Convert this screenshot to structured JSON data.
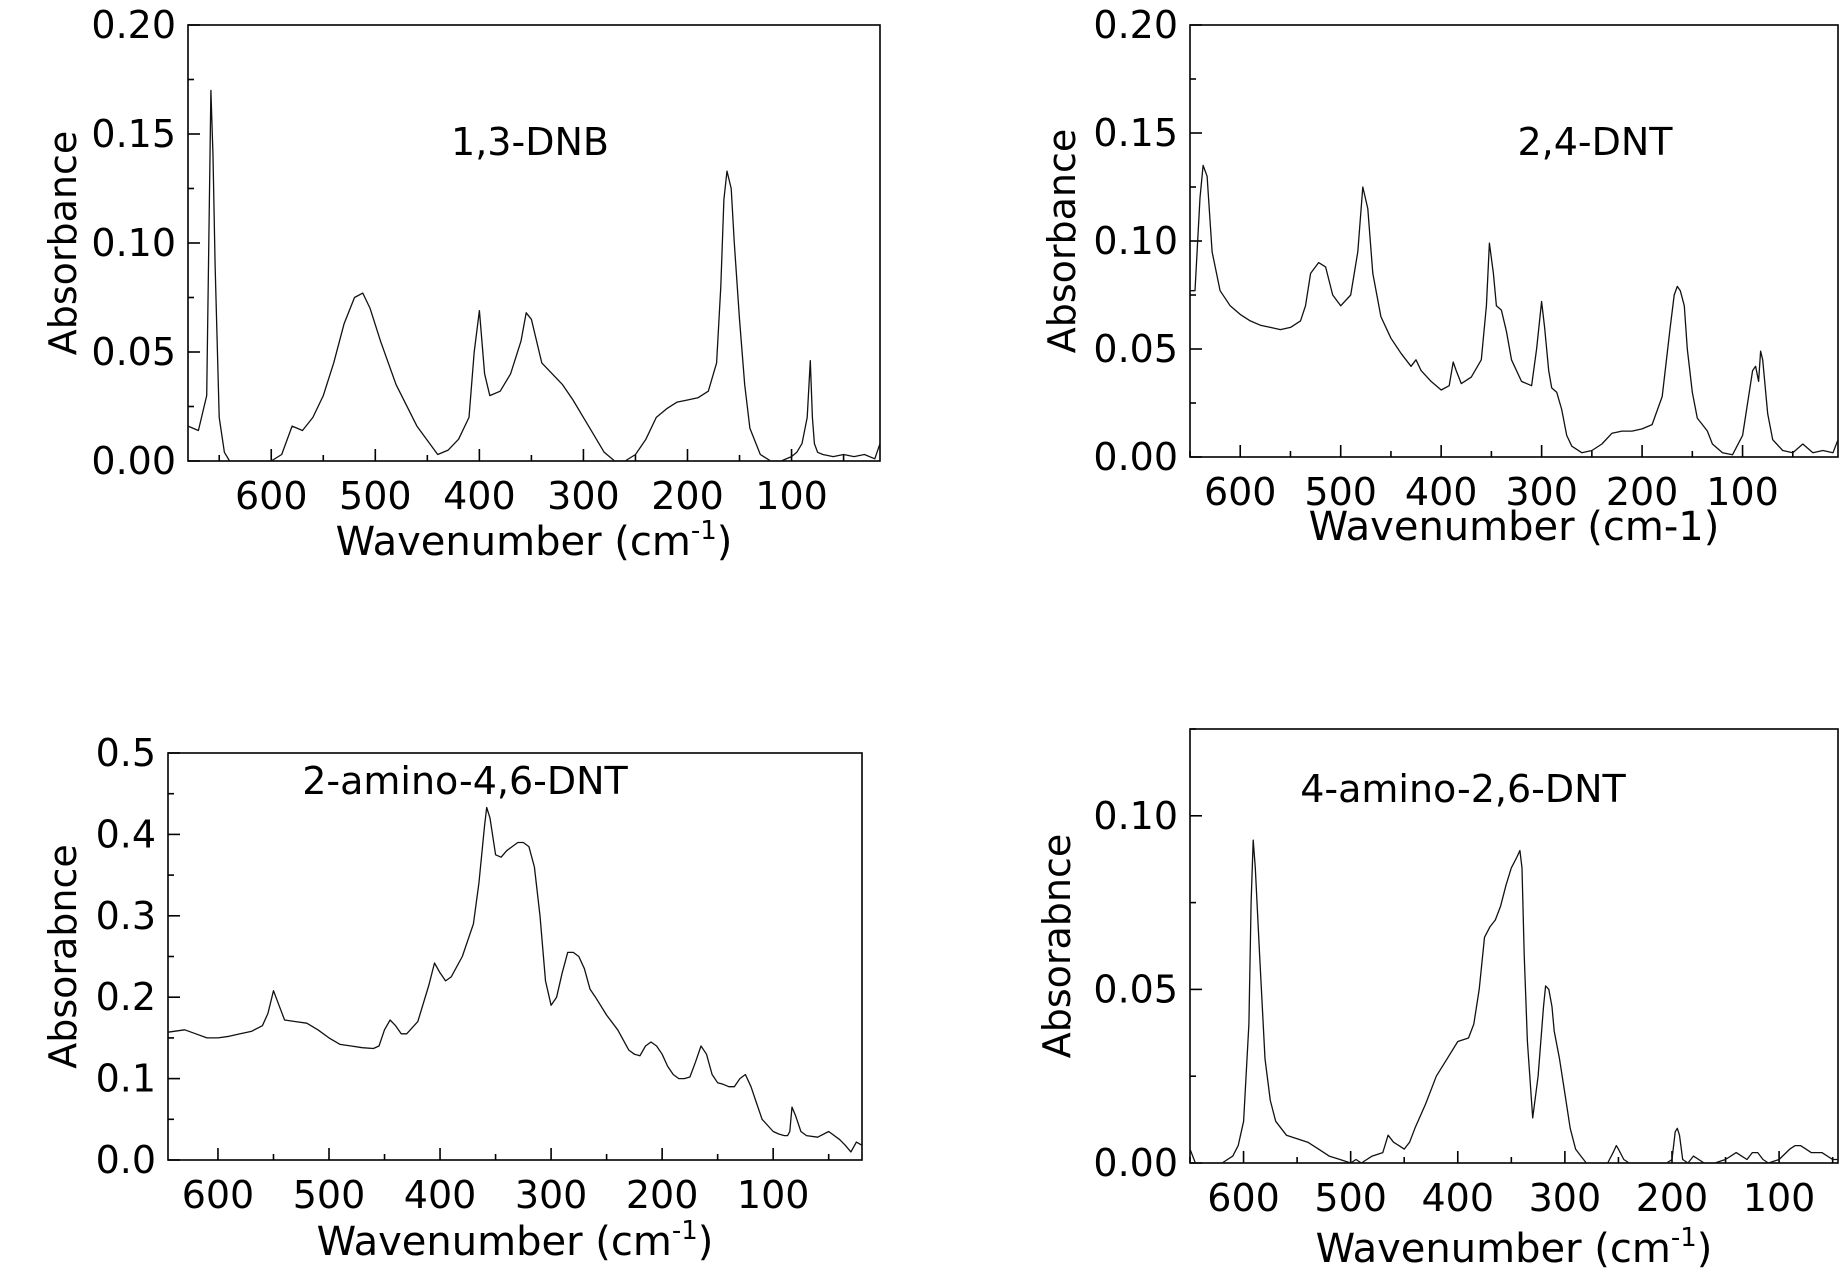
{
  "chart_data": [
    {
      "type": "line",
      "title": "1,3-DNB",
      "xlabel": "Wavenumber (cm",
      "xlabel_sup": "-1",
      "xlabel_end": ")",
      "ylabel": "Absorbance",
      "xlim": [
        680,
        15
      ],
      "ylim": [
        0,
        0.2
      ],
      "x_ticks": [
        600,
        500,
        400,
        300,
        200,
        100
      ],
      "x_tick_labels": [
        "600",
        "500",
        "400",
        "300",
        "200",
        "100"
      ],
      "y_ticks": [
        0,
        0.05,
        0.1,
        0.15,
        0.2
      ],
      "y_tick_labels": [
        "0.00",
        "0.05",
        "0.10",
        "0.15",
        "0.20"
      ],
      "grid": false,
      "series": [
        {
          "x": [
            680,
            670,
            662,
            658,
            656,
            654,
            650,
            645,
            640,
            620,
            600,
            590,
            580,
            570,
            560,
            550,
            540,
            530,
            520,
            512,
            505,
            495,
            480,
            460,
            440,
            430,
            420,
            410,
            405,
            400,
            395,
            390,
            380,
            370,
            360,
            355,
            350,
            345,
            340,
            330,
            320,
            310,
            300,
            290,
            280,
            270,
            260,
            250,
            240,
            230,
            220,
            210,
            200,
            190,
            180,
            172,
            168,
            165,
            162,
            158,
            155,
            150,
            145,
            140,
            130,
            120,
            110,
            100,
            95,
            90,
            85,
            82,
            80,
            78,
            75,
            70,
            60,
            50,
            40,
            30,
            20,
            15
          ],
          "y": [
            0.016,
            0.014,
            0.03,
            0.17,
            0.14,
            0.09,
            0.02,
            0.004,
            0.0,
            0.0,
            0.0,
            0.003,
            0.016,
            0.014,
            0.02,
            0.03,
            0.045,
            0.063,
            0.075,
            0.077,
            0.07,
            0.055,
            0.035,
            0.016,
            0.003,
            0.005,
            0.01,
            0.02,
            0.05,
            0.069,
            0.04,
            0.03,
            0.032,
            0.04,
            0.055,
            0.068,
            0.065,
            0.055,
            0.045,
            0.04,
            0.035,
            0.028,
            0.02,
            0.012,
            0.004,
            0.0,
            0.0,
            0.003,
            0.01,
            0.02,
            0.024,
            0.027,
            0.028,
            0.029,
            0.032,
            0.045,
            0.08,
            0.12,
            0.133,
            0.125,
            0.1,
            0.065,
            0.035,
            0.015,
            0.003,
            0.0,
            0.0,
            0.002,
            0.004,
            0.008,
            0.02,
            0.046,
            0.02,
            0.008,
            0.004,
            0.003,
            0.002,
            0.003,
            0.002,
            0.003,
            0.001,
            0.008
          ]
        }
      ]
    },
    {
      "type": "line",
      "title": "2,4-DNT",
      "xlabel": "Wavenumber (cm-1)",
      "ylabel": "Absorbance",
      "xlim": [
        650,
        5
      ],
      "ylim": [
        0,
        0.2
      ],
      "x_ticks": [
        600,
        500,
        400,
        300,
        200,
        100
      ],
      "x_tick_labels": [
        "600",
        "500",
        "400",
        "300",
        "200",
        "100"
      ],
      "y_ticks": [
        0,
        0.05,
        0.1,
        0.15,
        0.2
      ],
      "y_tick_labels": [
        "0.00",
        "0.05",
        "0.10",
        "0.15",
        "0.20"
      ],
      "grid": false,
      "series": [
        {
          "x": [
            650,
            645,
            640,
            637,
            633,
            628,
            620,
            610,
            600,
            590,
            580,
            570,
            560,
            550,
            540,
            535,
            530,
            522,
            515,
            508,
            500,
            490,
            483,
            478,
            473,
            468,
            460,
            450,
            440,
            430,
            425,
            420,
            410,
            400,
            392,
            388,
            385,
            380,
            370,
            360,
            355,
            352,
            348,
            345,
            340,
            335,
            330,
            320,
            310,
            305,
            300,
            297,
            293,
            290,
            285,
            280,
            275,
            270,
            260,
            250,
            240,
            230,
            220,
            210,
            200,
            190,
            180,
            172,
            168,
            165,
            162,
            158,
            155,
            150,
            145,
            140,
            135,
            130,
            120,
            110,
            100,
            95,
            90,
            87,
            84,
            82,
            80,
            75,
            70,
            60,
            50,
            40,
            30,
            20,
            10,
            5
          ],
          "y": [
            0.077,
            0.077,
            0.12,
            0.135,
            0.13,
            0.095,
            0.077,
            0.07,
            0.066,
            0.063,
            0.061,
            0.06,
            0.059,
            0.06,
            0.063,
            0.07,
            0.085,
            0.09,
            0.088,
            0.075,
            0.07,
            0.075,
            0.095,
            0.125,
            0.115,
            0.085,
            0.065,
            0.055,
            0.048,
            0.042,
            0.045,
            0.04,
            0.035,
            0.031,
            0.033,
            0.044,
            0.04,
            0.034,
            0.037,
            0.045,
            0.07,
            0.099,
            0.085,
            0.07,
            0.068,
            0.058,
            0.045,
            0.035,
            0.033,
            0.05,
            0.072,
            0.06,
            0.04,
            0.032,
            0.03,
            0.022,
            0.01,
            0.005,
            0.002,
            0.003,
            0.006,
            0.011,
            0.012,
            0.012,
            0.013,
            0.015,
            0.028,
            0.06,
            0.075,
            0.079,
            0.077,
            0.07,
            0.05,
            0.03,
            0.018,
            0.015,
            0.012,
            0.006,
            0.002,
            0.001,
            0.01,
            0.025,
            0.04,
            0.042,
            0.035,
            0.049,
            0.045,
            0.02,
            0.008,
            0.003,
            0.002,
            0.006,
            0.002,
            0.003,
            0.002,
            0.008
          ]
        }
      ]
    },
    {
      "type": "line",
      "title": "2-amino-4,6-DNT",
      "xlabel": "Wavenumber (cm",
      "xlabel_sup": "-1",
      "xlabel_end": ")",
      "ylabel": "Absorabnce",
      "xlim": [
        645,
        20
      ],
      "ylim": [
        0,
        0.5
      ],
      "x_ticks": [
        600,
        500,
        400,
        300,
        200,
        100
      ],
      "x_tick_labels": [
        "600",
        "500",
        "400",
        "300",
        "200",
        "100"
      ],
      "y_ticks": [
        0,
        0.1,
        0.2,
        0.3,
        0.4,
        0.5
      ],
      "y_tick_labels": [
        "0.0",
        "0.1",
        "0.2",
        "0.3",
        "0.4",
        "0.5"
      ],
      "grid": false,
      "series": [
        {
          "x": [
            645,
            630,
            620,
            610,
            600,
            590,
            580,
            570,
            560,
            555,
            550,
            545,
            540,
            530,
            520,
            510,
            500,
            490,
            480,
            470,
            460,
            455,
            450,
            445,
            440,
            435,
            430,
            420,
            410,
            405,
            400,
            395,
            390,
            380,
            370,
            365,
            360,
            358,
            355,
            350,
            345,
            340,
            335,
            330,
            325,
            320,
            315,
            310,
            305,
            300,
            295,
            290,
            285,
            280,
            275,
            270,
            265,
            260,
            250,
            240,
            230,
            225,
            220,
            215,
            210,
            205,
            200,
            195,
            190,
            185,
            180,
            175,
            170,
            165,
            160,
            155,
            150,
            145,
            140,
            135,
            130,
            125,
            120,
            115,
            110,
            100,
            95,
            90,
            87,
            85,
            83,
            80,
            75,
            70,
            60,
            50,
            40,
            35,
            30,
            25,
            20
          ],
          "y": [
            0.157,
            0.16,
            0.155,
            0.15,
            0.15,
            0.152,
            0.155,
            0.158,
            0.165,
            0.18,
            0.208,
            0.19,
            0.172,
            0.17,
            0.168,
            0.16,
            0.15,
            0.142,
            0.14,
            0.138,
            0.137,
            0.14,
            0.16,
            0.172,
            0.165,
            0.155,
            0.155,
            0.17,
            0.215,
            0.242,
            0.23,
            0.22,
            0.225,
            0.25,
            0.29,
            0.34,
            0.41,
            0.433,
            0.42,
            0.375,
            0.372,
            0.38,
            0.385,
            0.39,
            0.39,
            0.385,
            0.36,
            0.3,
            0.22,
            0.19,
            0.2,
            0.23,
            0.255,
            0.255,
            0.25,
            0.235,
            0.21,
            0.2,
            0.178,
            0.16,
            0.135,
            0.13,
            0.128,
            0.14,
            0.145,
            0.14,
            0.13,
            0.115,
            0.105,
            0.1,
            0.1,
            0.102,
            0.12,
            0.14,
            0.13,
            0.105,
            0.095,
            0.093,
            0.09,
            0.09,
            0.1,
            0.105,
            0.09,
            0.07,
            0.05,
            0.035,
            0.032,
            0.03,
            0.03,
            0.035,
            0.065,
            0.055,
            0.035,
            0.03,
            0.028,
            0.035,
            0.025,
            0.018,
            0.01,
            0.022,
            0.018
          ]
        }
      ]
    },
    {
      "type": "line",
      "title": "4-amino-2,6-DNT",
      "xlabel": "Wavenumber (cm",
      "xlabel_sup": "-1",
      "xlabel_end": ")",
      "ylabel": "Absorabnce",
      "xlim": [
        650,
        45
      ],
      "ylim": [
        0,
        0.125
      ],
      "x_ticks": [
        600,
        500,
        400,
        300,
        200,
        100
      ],
      "x_tick_labels": [
        "600",
        "500",
        "400",
        "300",
        "200",
        "100"
      ],
      "y_ticks": [
        0,
        0.05,
        0.1
      ],
      "y_tick_labels": [
        "0.00",
        "0.05",
        "0.10"
      ],
      "grid": false,
      "series": [
        {
          "x": [
            650,
            645,
            640,
            630,
            620,
            610,
            605,
            600,
            595,
            593,
            591,
            589,
            585,
            580,
            575,
            570,
            560,
            550,
            540,
            530,
            520,
            510,
            500,
            495,
            490,
            480,
            470,
            465,
            460,
            455,
            450,
            445,
            440,
            430,
            420,
            410,
            400,
            390,
            385,
            380,
            375,
            370,
            365,
            360,
            355,
            350,
            345,
            342,
            340,
            338,
            335,
            330,
            325,
            320,
            318,
            315,
            312,
            310,
            305,
            300,
            295,
            290,
            285,
            280,
            275,
            270,
            260,
            255,
            252,
            250,
            245,
            240,
            230,
            220,
            210,
            205,
            200,
            197,
            195,
            193,
            190,
            185,
            180,
            170,
            160,
            150,
            140,
            135,
            130,
            125,
            120,
            115,
            110,
            100,
            90,
            85,
            80,
            75,
            70,
            60,
            50,
            45
          ],
          "y": [
            0.004,
            0.0,
            0.0,
            0.0,
            0.0,
            0.002,
            0.005,
            0.012,
            0.04,
            0.075,
            0.093,
            0.085,
            0.06,
            0.03,
            0.018,
            0.012,
            0.008,
            0.007,
            0.006,
            0.004,
            0.002,
            0.001,
            0.0,
            0.001,
            0.0,
            0.002,
            0.003,
            0.008,
            0.006,
            0.005,
            0.004,
            0.006,
            0.01,
            0.017,
            0.025,
            0.03,
            0.035,
            0.036,
            0.04,
            0.05,
            0.065,
            0.068,
            0.07,
            0.074,
            0.08,
            0.085,
            0.088,
            0.09,
            0.085,
            0.06,
            0.035,
            0.013,
            0.025,
            0.045,
            0.051,
            0.05,
            0.045,
            0.038,
            0.03,
            0.02,
            0.01,
            0.004,
            0.002,
            0.0,
            0.0,
            0.0,
            0.0,
            0.003,
            0.005,
            0.004,
            0.001,
            0.0,
            0.0,
            0.0,
            0.0,
            0.0,
            0.001,
            0.009,
            0.01,
            0.008,
            0.001,
            0.0,
            0.002,
            0.0,
            0.0,
            0.001,
            0.003,
            0.002,
            0.001,
            0.003,
            0.003,
            0.001,
            0.0,
            0.001,
            0.004,
            0.005,
            0.005,
            0.004,
            0.003,
            0.003,
            0.001,
            0.001
          ]
        }
      ]
    }
  ]
}
